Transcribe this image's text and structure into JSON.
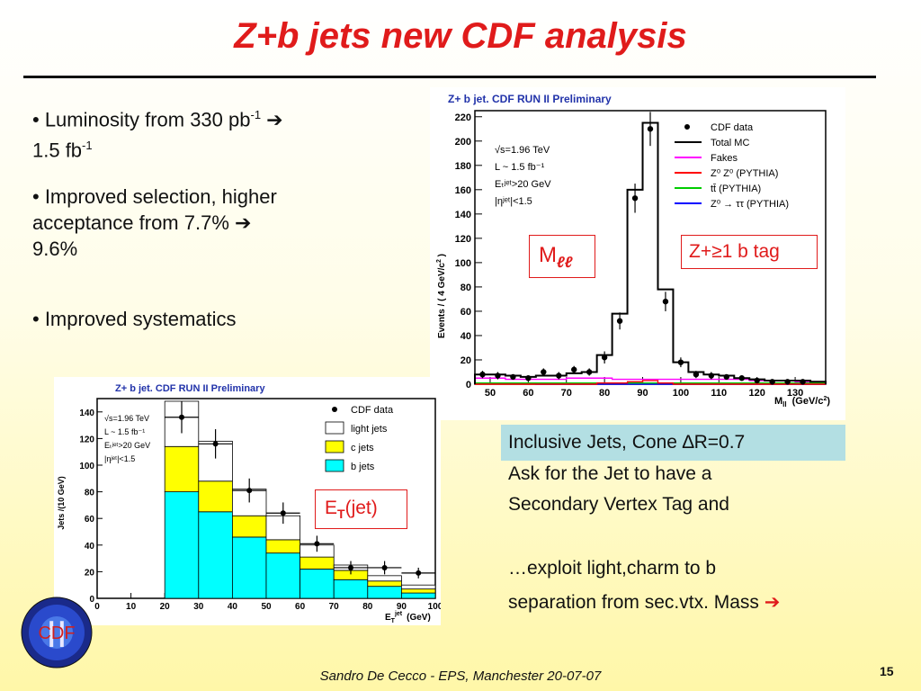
{
  "title": "Z+b jets new CDF analysis",
  "bullets": {
    "b1_line1": "• Luminosity from 330 pb",
    "b1_sup1": "-1",
    "b1_line2": "1.5 fb",
    "b1_sup2": "-1",
    "b2_line1": "• Improved selection, higher",
    "b2_line2": "acceptance from 7.7%",
    "b2_line3": "9.6%",
    "b3": "• Improved systematics"
  },
  "arrow_glyph": "➔",
  "top_plot": {
    "header": "Z+ b jet. CDF RUN II Preliminary",
    "ylabel": "Events / ( 4 GeV/c",
    "ylabel_sup": "2",
    "xlabel_main": "M",
    "xlabel_sub": "ll",
    "xlabel_unit": "(GeV/c",
    "xlabel_unit_sup": "2",
    "info": [
      "√s=1.96 TeV",
      "L ~ 1.5 fb⁻¹",
      "Eₜʲᵉᵗ>20 GeV",
      "|ηʲᵉᵗ|<1.5"
    ],
    "legend": [
      {
        "label": "CDF data",
        "color": "#000000"
      },
      {
        "label": "Total MC",
        "color": "#000000"
      },
      {
        "label": "Fakes",
        "color": "#ff00ff"
      },
      {
        "label": "Z⁰ Z⁰ (PYTHIA)",
        "color": "#ff0000"
      },
      {
        "label": "tt̄ (PYTHIA)",
        "color": "#00cc00"
      },
      {
        "label": "Z⁰ → ττ (PYTHIA)",
        "color": "#0000ff"
      }
    ],
    "mll_box_main": "M",
    "mll_box_sub": "ℓℓ",
    "tag_box": "Z+≥1 b tag"
  },
  "bottom_plot": {
    "header": "Z+ b jet. CDF RUN II Preliminary",
    "ylabel": "Jets /(10 GeV)",
    "xlabel_main": "E",
    "xlabel_sub": "T",
    "xlabel_sup": "jet",
    "xlabel_unit": "(GeV)",
    "info": [
      "√s=1.96 TeV",
      "L ~ 1.5 fb⁻¹",
      "Eₜʲᵉᵗ>20 GeV",
      "|ηʲᵉᵗ|<1.5"
    ],
    "legend": [
      {
        "label": "CDF data",
        "color": "#000000"
      },
      {
        "label": "light jets",
        "color": "#ffffff"
      },
      {
        "label": "c jets",
        "color": "#ffff00"
      },
      {
        "label": "b jets",
        "color": "#00ffff"
      }
    ],
    "et_box_main": "E",
    "et_box_sub": "T",
    "et_box_rest": "(jet)"
  },
  "chart_data": [
    {
      "type": "bar",
      "title": "Z+ b jet. CDF RUN II Preliminary",
      "xlabel": "M_ll (GeV/c^2)",
      "ylabel": "Events / ( 4 GeV/c^2 )",
      "xlim": [
        46,
        138
      ],
      "ylim": [
        0,
        225
      ],
      "x_ticks": [
        50,
        60,
        70,
        80,
        90,
        100,
        110,
        120,
        130
      ],
      "y_ticks": [
        0,
        20,
        40,
        60,
        80,
        100,
        120,
        140,
        160,
        180,
        200,
        220
      ],
      "bin_edges": [
        46,
        50,
        54,
        58,
        62,
        66,
        70,
        74,
        78,
        82,
        86,
        90,
        94,
        98,
        102,
        106,
        110,
        114,
        118,
        122,
        126,
        130,
        134,
        138
      ],
      "series": [
        {
          "name": "Total MC",
          "values": [
            8,
            8,
            7,
            6,
            7,
            7,
            9,
            10,
            24,
            58,
            160,
            215,
            78,
            18,
            10,
            8,
            7,
            5,
            4,
            3,
            3,
            3,
            2
          ]
        },
        {
          "name": "Fakes",
          "values": [
            5,
            5,
            4,
            4,
            4,
            4,
            5,
            5,
            5,
            4,
            4,
            4,
            4,
            4,
            4,
            4,
            4,
            4,
            3,
            3,
            3,
            2,
            2
          ]
        },
        {
          "name": "Z⁰ Z⁰ (PYTHIA)",
          "values": [
            0,
            0,
            0,
            0,
            0,
            0,
            0,
            0,
            1,
            1,
            2,
            3,
            1,
            0,
            0,
            0,
            0,
            0,
            0,
            0,
            0,
            0,
            0
          ]
        },
        {
          "name": "tt̄ (PYTHIA)",
          "values": [
            1,
            1,
            1,
            1,
            1,
            1,
            1,
            1,
            1,
            1,
            1,
            1,
            1,
            1,
            1,
            1,
            1,
            1,
            1,
            1,
            1,
            1,
            1
          ]
        },
        {
          "name": "Z⁰ → ττ (PYTHIA)",
          "values": [
            1,
            1,
            1,
            1,
            0,
            0,
            0,
            0,
            0,
            0,
            0,
            0,
            0,
            0,
            0,
            0,
            0,
            0,
            0,
            0,
            0,
            0,
            0
          ]
        }
      ],
      "data_points": [
        {
          "x": 48,
          "y": 8,
          "err": 3
        },
        {
          "x": 52,
          "y": 7,
          "err": 3
        },
        {
          "x": 56,
          "y": 6,
          "err": 2
        },
        {
          "x": 60,
          "y": 5,
          "err": 2
        },
        {
          "x": 64,
          "y": 10,
          "err": 3
        },
        {
          "x": 68,
          "y": 7,
          "err": 3
        },
        {
          "x": 72,
          "y": 12,
          "err": 3
        },
        {
          "x": 76,
          "y": 10,
          "err": 3
        },
        {
          "x": 80,
          "y": 22,
          "err": 5
        },
        {
          "x": 84,
          "y": 52,
          "err": 7
        },
        {
          "x": 88,
          "y": 153,
          "err": 12
        },
        {
          "x": 92,
          "y": 210,
          "err": 14
        },
        {
          "x": 96,
          "y": 68,
          "err": 8
        },
        {
          "x": 100,
          "y": 18,
          "err": 4
        },
        {
          "x": 104,
          "y": 8,
          "err": 3
        },
        {
          "x": 108,
          "y": 7,
          "err": 3
        },
        {
          "x": 112,
          "y": 6,
          "err": 2
        },
        {
          "x": 116,
          "y": 5,
          "err": 2
        },
        {
          "x": 120,
          "y": 3,
          "err": 2
        },
        {
          "x": 124,
          "y": 2,
          "err": 1
        },
        {
          "x": 128,
          "y": 2,
          "err": 1
        },
        {
          "x": 132,
          "y": 2,
          "err": 1
        }
      ],
      "legend_position": "top-right",
      "grid": false
    },
    {
      "type": "bar",
      "title": "Z+ b jet. CDF RUN II Preliminary",
      "xlabel": "E_T^jet (GeV)",
      "ylabel": "Jets /(10 GeV)",
      "xlim": [
        0,
        100
      ],
      "ylim": [
        0,
        150
      ],
      "x_ticks": [
        0,
        10,
        20,
        30,
        40,
        50,
        60,
        70,
        80,
        90,
        100
      ],
      "y_ticks": [
        0,
        20,
        40,
        60,
        80,
        100,
        120,
        140
      ],
      "bin_edges": [
        20,
        30,
        40,
        50,
        60,
        70,
        80,
        90,
        100
      ],
      "series": [
        {
          "name": "b jets",
          "values": [
            80,
            65,
            46,
            34,
            22,
            14,
            9,
            4
          ]
        },
        {
          "name": "c jets",
          "values": [
            34,
            23,
            16,
            10,
            9,
            7,
            4,
            3
          ]
        },
        {
          "name": "light jets",
          "values": [
            34,
            30,
            20,
            18,
            9,
            4,
            4,
            3
          ]
        }
      ],
      "data_points": [
        {
          "x": 25,
          "y": 136,
          "err": 12
        },
        {
          "x": 35,
          "y": 116,
          "err": 11
        },
        {
          "x": 45,
          "y": 81,
          "err": 9
        },
        {
          "x": 55,
          "y": 64,
          "err": 8
        },
        {
          "x": 65,
          "y": 41,
          "err": 6
        },
        {
          "x": 75,
          "y": 23,
          "err": 5
        },
        {
          "x": 85,
          "y": 23,
          "err": 5
        },
        {
          "x": 95,
          "y": 19,
          "err": 4
        }
      ],
      "legend_position": "top-right",
      "grid": false
    }
  ],
  "inclusive": "Inclusive Jets, Cone ∆R=0.7",
  "right_text": {
    "l1": "Ask for the Jet to have a",
    "l2": "Secondary Vertex Tag and",
    "l3": "…exploit light,charm to b",
    "l4": "separation from sec.vtx. Mass"
  },
  "logo_text": "CDF",
  "logo_roman": "II",
  "footer": "Sandro De Cecco  -  EPS, Manchester 20-07-07",
  "page_number": "15",
  "colors": {
    "title": "#e01b1b",
    "arrow": "#e01b1b",
    "cyan_box": "#b3dfe3"
  }
}
